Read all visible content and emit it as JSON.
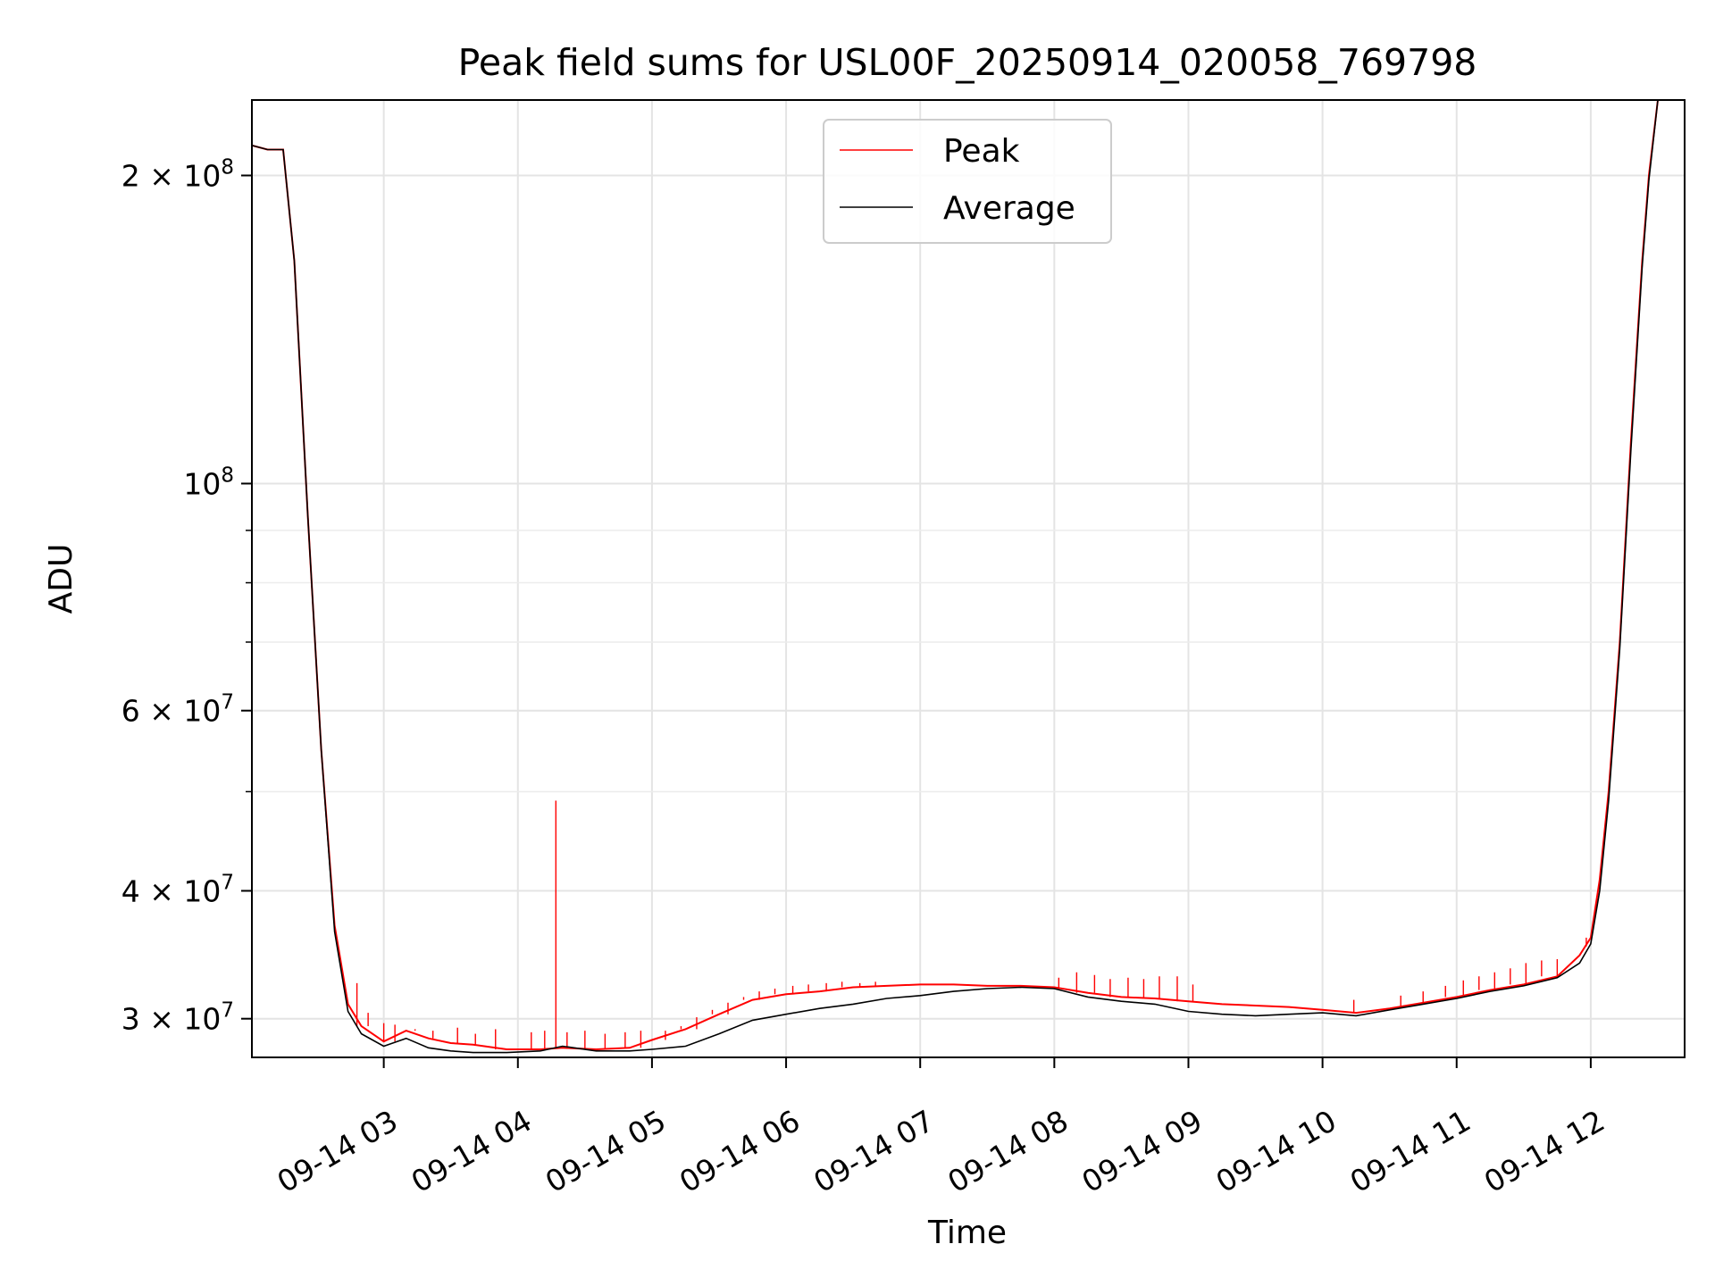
{
  "chart_data": {
    "type": "line",
    "title": "Peak field sums for USL00F_20250914_020058_769798",
    "xlabel": "Time",
    "ylabel": "ADU",
    "yscale": "log",
    "grid": true,
    "legend_position": "top-center",
    "xlim": [
      "09-14 02:01",
      "09-14 12:42"
    ],
    "ylim": [
      27500000,
      237000000
    ],
    "x_ticks": [
      "09-14 03",
      "09-14 04",
      "09-14 05",
      "09-14 06",
      "09-14 07",
      "09-14 08",
      "09-14 09",
      "09-14 10",
      "09-14 11",
      "09-14 12"
    ],
    "y_ticks": [
      {
        "value": 30000000,
        "mantissa": "3",
        "exp": "7"
      },
      {
        "value": 40000000,
        "mantissa": "4",
        "exp": "7"
      },
      {
        "value": 60000000,
        "mantissa": "6",
        "exp": "7"
      },
      {
        "value": 100000000,
        "mantissa": "",
        "exp": "8"
      },
      {
        "value": 200000000,
        "mantissa": "2",
        "exp": "8"
      }
    ],
    "y_minor_ticks": [
      50000000,
      70000000,
      80000000,
      90000000
    ],
    "series": [
      {
        "name": "Peak",
        "color": "#ff0000",
        "points": [
          [
            "09-14 02:01",
            214000000
          ],
          [
            "09-14 02:08",
            212000000
          ],
          [
            "09-14 02:15",
            212000000
          ],
          [
            "09-14 02:20",
            165000000
          ],
          [
            "09-14 02:26",
            93000000
          ],
          [
            "09-14 02:32",
            55000000
          ],
          [
            "09-14 02:38",
            37000000
          ],
          [
            "09-14 02:44",
            31000000
          ],
          [
            "09-14 02:50",
            29500000
          ],
          [
            "09-14 03:00",
            28500000
          ],
          [
            "09-14 03:10",
            29200000
          ],
          [
            "09-14 03:20",
            28700000
          ],
          [
            "09-14 03:30",
            28400000
          ],
          [
            "09-14 03:40",
            28300000
          ],
          [
            "09-14 03:55",
            28000000
          ],
          [
            "09-14 04:10",
            28000000
          ],
          [
            "09-14 04:20",
            28100000
          ],
          [
            "09-14 04:35",
            28000000
          ],
          [
            "09-14 04:50",
            28100000
          ],
          [
            "09-14 05:00",
            28600000
          ],
          [
            "09-14 05:15",
            29300000
          ],
          [
            "09-14 05:30",
            30300000
          ],
          [
            "09-14 05:45",
            31300000
          ],
          [
            "09-14 06:00",
            31700000
          ],
          [
            "09-14 06:15",
            31900000
          ],
          [
            "09-14 06:30",
            32200000
          ],
          [
            "09-14 06:45",
            32300000
          ],
          [
            "09-14 07:00",
            32400000
          ],
          [
            "09-14 07:15",
            32400000
          ],
          [
            "09-14 07:30",
            32300000
          ],
          [
            "09-14 07:45",
            32300000
          ],
          [
            "09-14 08:00",
            32200000
          ],
          [
            "09-14 08:15",
            31800000
          ],
          [
            "09-14 08:30",
            31500000
          ],
          [
            "09-14 08:45",
            31400000
          ],
          [
            "09-14 09:00",
            31200000
          ],
          [
            "09-14 09:15",
            31000000
          ],
          [
            "09-14 09:30",
            30900000
          ],
          [
            "09-14 09:45",
            30800000
          ],
          [
            "09-14 10:00",
            30600000
          ],
          [
            "09-14 10:15",
            30400000
          ],
          [
            "09-14 10:30",
            30700000
          ],
          [
            "09-14 10:45",
            31100000
          ],
          [
            "09-14 11:00",
            31500000
          ],
          [
            "09-14 11:15",
            32000000
          ],
          [
            "09-14 11:30",
            32400000
          ],
          [
            "09-14 11:45",
            33000000
          ],
          [
            "09-14 11:55",
            34600000
          ],
          [
            "09-14 12:00",
            36000000
          ],
          [
            "09-14 12:04",
            41000000
          ],
          [
            "09-14 12:08",
            50000000
          ],
          [
            "09-14 12:13",
            70000000
          ],
          [
            "09-14 12:18",
            110000000
          ],
          [
            "09-14 12:23",
            165000000
          ],
          [
            "09-14 12:26",
            200000000
          ],
          [
            "09-14 12:30",
            237000000
          ]
        ],
        "spikes": [
          [
            "09-14 02:48",
            32500000
          ],
          [
            "09-14 02:53",
            30400000
          ],
          [
            "09-14 03:00",
            29700000
          ],
          [
            "09-14 03:05",
            29600000
          ],
          [
            "09-14 03:14",
            29300000
          ],
          [
            "09-14 03:22",
            29200000
          ],
          [
            "09-14 03:33",
            29400000
          ],
          [
            "09-14 03:41",
            29000000
          ],
          [
            "09-14 03:50",
            29300000
          ],
          [
            "09-14 04:06",
            29100000
          ],
          [
            "09-14 04:12",
            29200000
          ],
          [
            "09-14 04:17",
            49000000
          ],
          [
            "09-14 04:22",
            29100000
          ],
          [
            "09-14 04:30",
            29200000
          ],
          [
            "09-14 04:39",
            29000000
          ],
          [
            "09-14 04:48",
            29100000
          ],
          [
            "09-14 04:55",
            29200000
          ],
          [
            "09-14 05:06",
            29200000
          ],
          [
            "09-14 05:13",
            29500000
          ],
          [
            "09-14 05:20",
            30100000
          ],
          [
            "09-14 05:27",
            30600000
          ],
          [
            "09-14 05:34",
            31100000
          ],
          [
            "09-14 05:41",
            31500000
          ],
          [
            "09-14 05:48",
            31900000
          ],
          [
            "09-14 05:55",
            32100000
          ],
          [
            "09-14 06:03",
            32300000
          ],
          [
            "09-14 06:10",
            32400000
          ],
          [
            "09-14 06:18",
            32500000
          ],
          [
            "09-14 06:25",
            32600000
          ],
          [
            "09-14 06:33",
            32500000
          ],
          [
            "09-14 06:40",
            32600000
          ],
          [
            "09-14 08:02",
            32900000
          ],
          [
            "09-14 08:10",
            33300000
          ],
          [
            "09-14 08:18",
            33100000
          ],
          [
            "09-14 08:25",
            32800000
          ],
          [
            "09-14 08:33",
            32900000
          ],
          [
            "09-14 08:40",
            32800000
          ],
          [
            "09-14 08:47",
            33000000
          ],
          [
            "09-14 08:55",
            33000000
          ],
          [
            "09-14 09:02",
            32400000
          ],
          [
            "09-14 10:14",
            31300000
          ],
          [
            "09-14 10:35",
            31600000
          ],
          [
            "09-14 10:45",
            31900000
          ],
          [
            "09-14 10:55",
            32300000
          ],
          [
            "09-14 11:03",
            32700000
          ],
          [
            "09-14 11:10",
            33000000
          ],
          [
            "09-14 11:17",
            33300000
          ],
          [
            "09-14 11:24",
            33600000
          ],
          [
            "09-14 11:31",
            34000000
          ],
          [
            "09-14 11:38",
            34200000
          ],
          [
            "09-14 11:45",
            34300000
          ],
          [
            "09-14 11:52",
            34600000
          ],
          [
            "09-14 11:58",
            35300000
          ]
        ]
      },
      {
        "name": "Average",
        "color": "#000000",
        "points": [
          [
            "09-14 02:01",
            214000000
          ],
          [
            "09-14 02:08",
            212000000
          ],
          [
            "09-14 02:15",
            212000000
          ],
          [
            "09-14 02:20",
            165000000
          ],
          [
            "09-14 02:26",
            93000000
          ],
          [
            "09-14 02:32",
            55000000
          ],
          [
            "09-14 02:38",
            36500000
          ],
          [
            "09-14 02:44",
            30500000
          ],
          [
            "09-14 02:50",
            29000000
          ],
          [
            "09-14 03:00",
            28200000
          ],
          [
            "09-14 03:10",
            28700000
          ],
          [
            "09-14 03:20",
            28100000
          ],
          [
            "09-14 03:30",
            27900000
          ],
          [
            "09-14 03:40",
            27800000
          ],
          [
            "09-14 03:55",
            27800000
          ],
          [
            "09-14 04:10",
            27900000
          ],
          [
            "09-14 04:20",
            28200000
          ],
          [
            "09-14 04:35",
            27900000
          ],
          [
            "09-14 04:50",
            27900000
          ],
          [
            "09-14 05:00",
            28000000
          ],
          [
            "09-14 05:15",
            28200000
          ],
          [
            "09-14 05:30",
            29000000
          ],
          [
            "09-14 05:45",
            29900000
          ],
          [
            "09-14 06:00",
            30300000
          ],
          [
            "09-14 06:15",
            30700000
          ],
          [
            "09-14 06:30",
            31000000
          ],
          [
            "09-14 06:45",
            31400000
          ],
          [
            "09-14 07:00",
            31600000
          ],
          [
            "09-14 07:15",
            31900000
          ],
          [
            "09-14 07:30",
            32100000
          ],
          [
            "09-14 07:45",
            32200000
          ],
          [
            "09-14 08:00",
            32100000
          ],
          [
            "09-14 08:15",
            31500000
          ],
          [
            "09-14 08:30",
            31200000
          ],
          [
            "09-14 08:45",
            31000000
          ],
          [
            "09-14 09:00",
            30500000
          ],
          [
            "09-14 09:15",
            30300000
          ],
          [
            "09-14 09:30",
            30200000
          ],
          [
            "09-14 09:45",
            30300000
          ],
          [
            "09-14 10:00",
            30400000
          ],
          [
            "09-14 10:15",
            30200000
          ],
          [
            "09-14 10:30",
            30600000
          ],
          [
            "09-14 10:45",
            31000000
          ],
          [
            "09-14 11:00",
            31400000
          ],
          [
            "09-14 11:15",
            31900000
          ],
          [
            "09-14 11:30",
            32300000
          ],
          [
            "09-14 11:45",
            32900000
          ],
          [
            "09-14 11:55",
            34000000
          ],
          [
            "09-14 12:00",
            35500000
          ],
          [
            "09-14 12:04",
            40000000
          ],
          [
            "09-14 12:08",
            49000000
          ],
          [
            "09-14 12:13",
            69000000
          ],
          [
            "09-14 12:18",
            108000000
          ],
          [
            "09-14 12:23",
            163000000
          ],
          [
            "09-14 12:26",
            198000000
          ],
          [
            "09-14 12:30",
            237000000
          ]
        ]
      }
    ]
  }
}
